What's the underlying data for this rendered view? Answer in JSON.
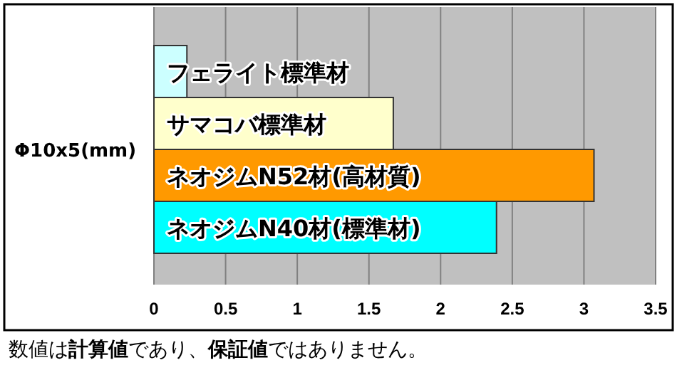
{
  "chart_data": {
    "type": "bar",
    "orientation": "horizontal",
    "ylabel": "Φ10x5(mm)",
    "categories": [
      "フェライト標準材",
      "サマコバ標準材",
      "ネオジムN52材(高材質)",
      "ネオジムN40材(標準材)"
    ],
    "values": [
      0.23,
      1.67,
      3.07,
      2.39
    ],
    "colors": [
      "#ccffff",
      "#ffffcc",
      "#ff9900",
      "#00ffff"
    ],
    "xlim": [
      0,
      3.5
    ],
    "xticks": [
      0,
      0.5,
      1,
      1.5,
      2,
      2.5,
      3,
      3.5
    ],
    "grid": "x",
    "annotations": [
      "数値は**計算値**であり、**保証値**ではありません。"
    ]
  }
}
